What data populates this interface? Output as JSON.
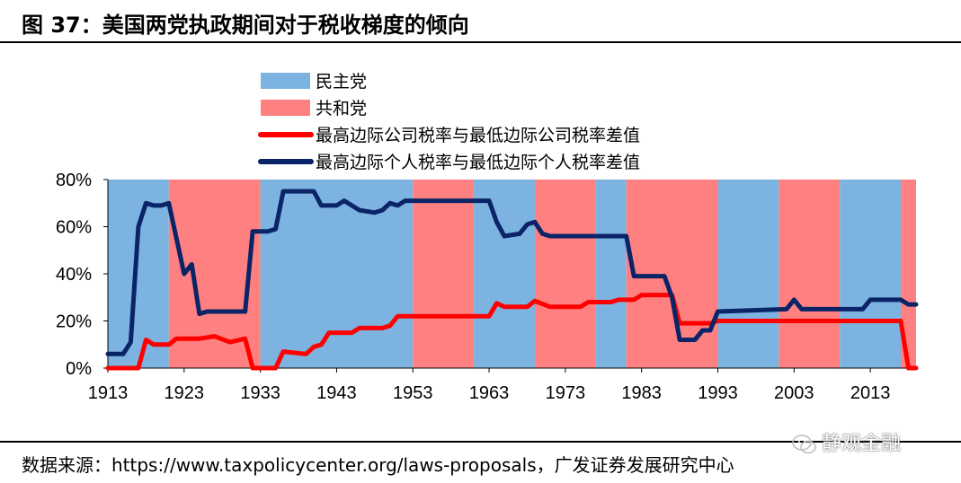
{
  "header": {
    "title": "图 37：美国两党执政期间对于税收梯度的倾向"
  },
  "source": {
    "label": "数据来源：",
    "text": "https://www.taxpolicycenter.org/laws-proposals，广发证券发展研究中心"
  },
  "watermark": {
    "text": "静观金融",
    "icon": "wechat-icon"
  },
  "chart_data": {
    "type": "line",
    "xlim": [
      1913,
      2019
    ],
    "ylim": [
      0,
      80
    ],
    "y_ticks": [
      "0%",
      "20%",
      "40%",
      "60%",
      "80%"
    ],
    "x_ticks": [
      "1913",
      "1923",
      "1933",
      "1943",
      "1953",
      "1963",
      "1973",
      "1983",
      "1993",
      "2003",
      "2013"
    ],
    "grid": false,
    "legend_position": "top-center",
    "colors": {
      "democrat": "#7DB3E0",
      "republican": "#FF8080",
      "corporate": "#FF0000",
      "individual": "#0A2467"
    },
    "party_periods": {
      "legend": [
        {
          "name": "民主党",
          "color": "#7DB3E0"
        },
        {
          "name": "共和党",
          "color": "#FF8080"
        }
      ],
      "periods": [
        {
          "party": "民主党",
          "start": 1913,
          "end": 1921
        },
        {
          "party": "共和党",
          "start": 1921,
          "end": 1933
        },
        {
          "party": "民主党",
          "start": 1933,
          "end": 1953
        },
        {
          "party": "共和党",
          "start": 1953,
          "end": 1961
        },
        {
          "party": "民主党",
          "start": 1961,
          "end": 1969
        },
        {
          "party": "共和党",
          "start": 1969,
          "end": 1977
        },
        {
          "party": "民主党",
          "start": 1977,
          "end": 1981
        },
        {
          "party": "共和党",
          "start": 1981,
          "end": 1993
        },
        {
          "party": "民主党",
          "start": 1993,
          "end": 2001
        },
        {
          "party": "共和党",
          "start": 2001,
          "end": 2009
        },
        {
          "party": "民主党",
          "start": 2009,
          "end": 2017
        },
        {
          "party": "共和党",
          "start": 2017,
          "end": 2019
        }
      ]
    },
    "series": [
      {
        "name": "最高边际公司税率与最低边际公司税率差值",
        "color": "#FF0000",
        "points": [
          [
            1913,
            0
          ],
          [
            1917,
            0
          ],
          [
            1918,
            12
          ],
          [
            1919,
            10
          ],
          [
            1921,
            10
          ],
          [
            1922,
            12.5
          ],
          [
            1925,
            12.5
          ],
          [
            1927,
            13.5
          ],
          [
            1929,
            11
          ],
          [
            1931,
            12.5
          ],
          [
            1932,
            0
          ],
          [
            1935,
            0
          ],
          [
            1936,
            7
          ],
          [
            1939,
            6
          ],
          [
            1940,
            9
          ],
          [
            1941,
            10
          ],
          [
            1942,
            15
          ],
          [
            1945,
            15
          ],
          [
            1946,
            17
          ],
          [
            1949,
            17
          ],
          [
            1950,
            18
          ],
          [
            1951,
            22
          ],
          [
            1963,
            22
          ],
          [
            1964,
            27.5
          ],
          [
            1965,
            26
          ],
          [
            1968,
            26
          ],
          [
            1969,
            28.5
          ],
          [
            1971,
            26
          ],
          [
            1975,
            26
          ],
          [
            1976,
            28
          ],
          [
            1979,
            28
          ],
          [
            1980,
            29
          ],
          [
            1982,
            29
          ],
          [
            1983,
            31
          ],
          [
            1987,
            31
          ],
          [
            1988,
            19
          ],
          [
            1992,
            19
          ],
          [
            1993,
            20
          ],
          [
            2017,
            20
          ],
          [
            2018,
            0
          ],
          [
            2019,
            0
          ]
        ]
      },
      {
        "name": "最高边际个人税率与最低边际个人税率差值",
        "color": "#0A2467",
        "points": [
          [
            1913,
            6
          ],
          [
            1915,
            6
          ],
          [
            1916,
            11
          ],
          [
            1917,
            60
          ],
          [
            1918,
            70
          ],
          [
            1919,
            69
          ],
          [
            1920,
            69
          ],
          [
            1921,
            70
          ],
          [
            1922,
            55
          ],
          [
            1923,
            40
          ],
          [
            1924,
            44
          ],
          [
            1925,
            23
          ],
          [
            1926,
            24
          ],
          [
            1931,
            24
          ],
          [
            1932,
            58
          ],
          [
            1934,
            58
          ],
          [
            1935,
            59
          ],
          [
            1936,
            75
          ],
          [
            1940,
            75
          ],
          [
            1941,
            69
          ],
          [
            1943,
            69
          ],
          [
            1944,
            71
          ],
          [
            1945,
            69
          ],
          [
            1946,
            67
          ],
          [
            1948,
            66
          ],
          [
            1949,
            67
          ],
          [
            1950,
            70
          ],
          [
            1951,
            69
          ],
          [
            1952,
            71
          ],
          [
            1963,
            71
          ],
          [
            1964,
            62
          ],
          [
            1965,
            56
          ],
          [
            1967,
            57
          ],
          [
            1968,
            61
          ],
          [
            1969,
            62
          ],
          [
            1970,
            57
          ],
          [
            1971,
            56
          ],
          [
            1981,
            56
          ],
          [
            1982,
            39
          ],
          [
            1986,
            39
          ],
          [
            1987,
            30
          ],
          [
            1988,
            12
          ],
          [
            1990,
            12
          ],
          [
            1991,
            16
          ],
          [
            1992,
            16
          ],
          [
            1993,
            24
          ],
          [
            2002,
            25
          ],
          [
            2003,
            29
          ],
          [
            2004,
            25
          ],
          [
            2012,
            25
          ],
          [
            2013,
            29
          ],
          [
            2017,
            29
          ],
          [
            2018,
            27
          ],
          [
            2019,
            27
          ]
        ]
      }
    ]
  }
}
